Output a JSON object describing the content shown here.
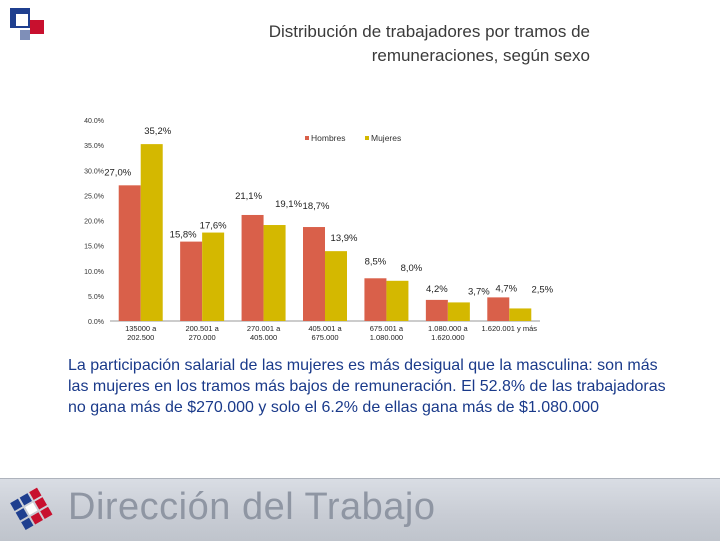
{
  "title_lines": [
    "Distribución de trabajadores por tramos de",
    "remuneraciones, según sexo"
  ],
  "chart_data": {
    "type": "bar",
    "categories": [
      [
        "135000 a",
        "202.500"
      ],
      [
        "200.501 a",
        "270.000"
      ],
      [
        "270.001 a",
        "405.000"
      ],
      [
        "405.001 a",
        "675.000"
      ],
      [
        "675.001 a",
        "1.080.000"
      ],
      [
        "1.080.000 a",
        "1.620.000"
      ],
      [
        "1.620.001 y más"
      ]
    ],
    "series": [
      {
        "name": "Hombres",
        "color": "#d9604a",
        "values": [
          27.0,
          15.8,
          21.1,
          18.7,
          8.5,
          4.2,
          4.7
        ],
        "labels": [
          "27,0%",
          "15,8%",
          "21,1%",
          "18,7%",
          "8,5%",
          "4,2%",
          "4,7%"
        ]
      },
      {
        "name": "Mujeres",
        "color": "#d4b800",
        "values": [
          35.2,
          17.6,
          19.1,
          13.9,
          8.0,
          3.7,
          2.5
        ],
        "labels": [
          "35,2%",
          "17,6%",
          "19,1%",
          "13,9%",
          "8,0%",
          "3,7%",
          "2,5%"
        ]
      }
    ],
    "y_ticks": [
      0,
      5,
      10,
      15,
      20,
      25,
      30,
      35,
      40
    ],
    "y_tick_labels": [
      "0.0%",
      "5.0%",
      "10.0%",
      "15.0%",
      "20.0%",
      "25.0%",
      "30.0%",
      "35.0%",
      "40.0%"
    ],
    "ylim": [
      0,
      40
    ],
    "legend_position": "top-right",
    "xlabel": "",
    "ylabel": ""
  },
  "caption": "La participación salarial de las mujeres es más desigual que la masculina: son más las mujeres en los tramos más bajos de remuneración. El 52.8% de las trabajadoras no gana más de $270.000 y solo el 6.2% de ellas gana más  de $1.080.000",
  "footer": {
    "text": "Dirección del Trabajo"
  },
  "colors": {
    "accent_blue": "#1a3a8a",
    "accent_red": "#c8102e"
  }
}
